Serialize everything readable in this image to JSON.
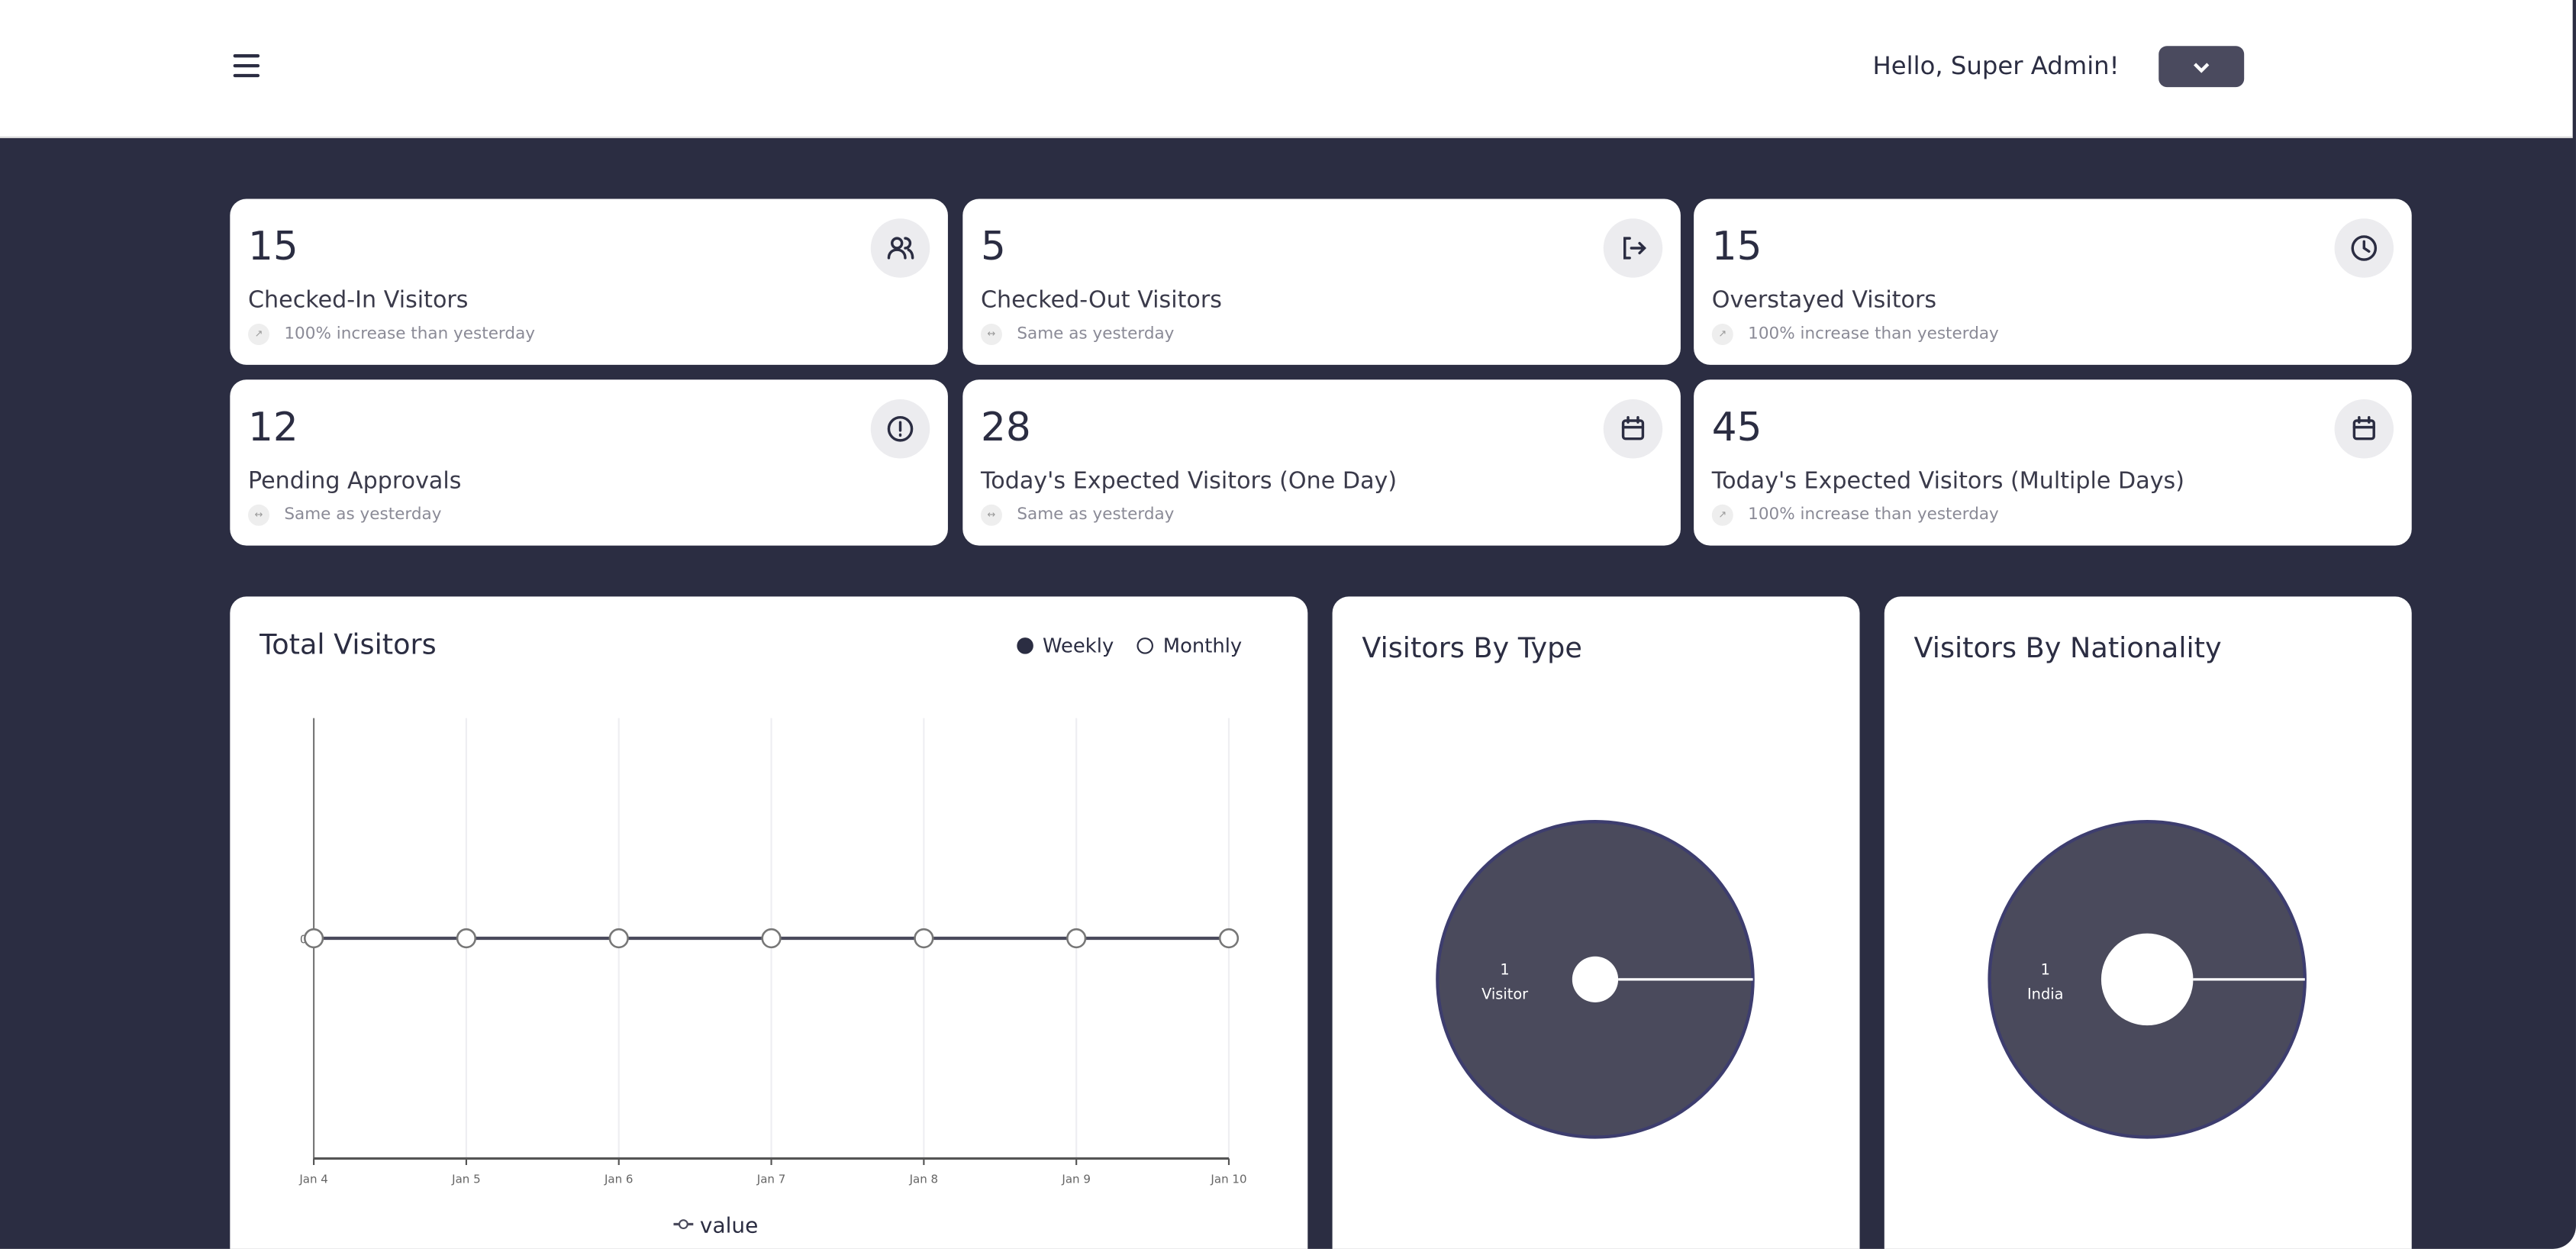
{
  "header": {
    "menu_icon": "hamburger-icon",
    "greeting": "Hello, Super Admin!",
    "dropdown_icon": "chevron-down-icon"
  },
  "stats": [
    {
      "value": "15",
      "label": "Checked-In Visitors",
      "trend": "100% increase than yesterday",
      "icon": "users-icon",
      "trend_icon": "trend-up-icon"
    },
    {
      "value": "5",
      "label": "Checked-Out Visitors",
      "trend": "Same as yesterday",
      "icon": "logout-icon",
      "trend_icon": "arrows-horizontal-icon"
    },
    {
      "value": "15",
      "label": "Overstayed Visitors",
      "trend": "100% increase than yesterday",
      "icon": "clock-icon",
      "trend_icon": "trend-up-icon"
    },
    {
      "value": "12",
      "label": "Pending Approvals",
      "trend": "Same as yesterday",
      "icon": "alert-circle-icon",
      "trend_icon": "arrows-horizontal-icon"
    },
    {
      "value": "28",
      "label": "Today's Expected Visitors (One Day)",
      "trend": "Same as yesterday",
      "icon": "calendar-icon",
      "trend_icon": "arrows-horizontal-icon"
    },
    {
      "value": "45",
      "label": "Today's Expected Visitors (Multiple Days)",
      "trend": "100% increase than yesterday",
      "icon": "calendar-icon",
      "trend_icon": "trend-up-icon"
    }
  ],
  "total_visitors": {
    "title": "Total Visitors",
    "options": [
      "Weekly",
      "Monthly"
    ],
    "selected": "Weekly"
  },
  "visitors_by_type": {
    "title": "Visitors By Type"
  },
  "visitors_by_nationality": {
    "title": "Visitors By Nationality"
  },
  "colors": {
    "background": "#2b2d42",
    "donut": "#4a4a5c",
    "line": "#4a4a5c"
  },
  "chart_data": [
    {
      "type": "line",
      "categories": [
        "Jan 4",
        "Jan 5",
        "Jan 6",
        "Jan 7",
        "Jan 8",
        "Jan 9",
        "Jan 10"
      ],
      "series": [
        {
          "name": "value",
          "values": [
            0,
            0,
            0,
            0,
            0,
            0,
            0
          ]
        }
      ],
      "yticks": [
        "0"
      ],
      "grid": true,
      "legend": "bottom"
    },
    {
      "type": "pie",
      "donut": true,
      "labels": [
        "Visitor"
      ],
      "values": [
        1
      ]
    },
    {
      "type": "pie",
      "donut": true,
      "labels": [
        "India"
      ],
      "values": [
        1
      ]
    }
  ]
}
